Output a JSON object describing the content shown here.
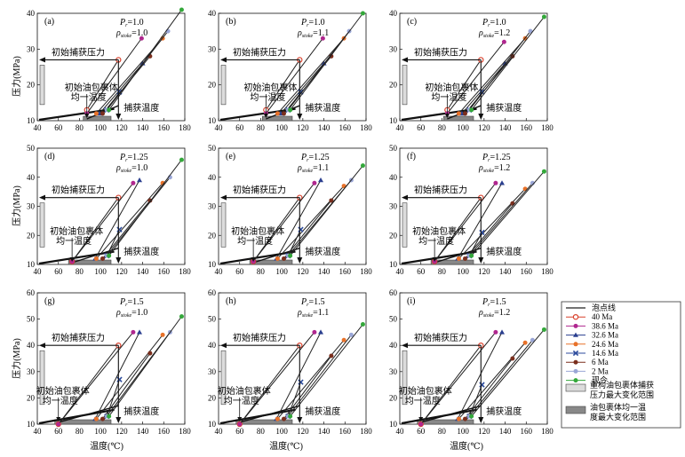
{
  "labels": {
    "ylabel": "压力(MPa)",
    "xlabel": "温度(℃)",
    "initial_pressure": "初始捕获压力",
    "init_homog_line1": "初始油包裹体",
    "init_homog_line2": "均一温度",
    "capture_temp": "捕获温度",
    "pr_prefix": "P",
    "pr_sub": "r",
    "rho_prefix": "ρ",
    "rho_sub": "stoke"
  },
  "legend": {
    "items": [
      {
        "label": "泡点线",
        "color": "#222222",
        "kind": "line"
      },
      {
        "label": "40 Ma",
        "color": "#d9402b",
        "kind": "circle-open"
      },
      {
        "label": "38.6 Ma",
        "color": "#b0278f",
        "kind": "circle"
      },
      {
        "label": "32.6 Ma",
        "color": "#2a3f8f",
        "kind": "triangle"
      },
      {
        "label": "24.6 Ma",
        "color": "#e8722a",
        "kind": "circle"
      },
      {
        "label": "14.6 Ma",
        "color": "#2c4b9c",
        "kind": "cross"
      },
      {
        "label": "6 Ma",
        "color": "#7a2e1d",
        "kind": "circle"
      },
      {
        "label": "2 Ma",
        "color": "#9aa6d6",
        "kind": "circle"
      },
      {
        "label": "现今",
        "color": "#33a83a",
        "kind": "circle"
      }
    ],
    "box1_line1": "重构油包裹体捕获",
    "box1_line2": "压力最大变化范围",
    "box2_line1": "油包裹体均一温",
    "box2_line2": "度最大变化范围"
  },
  "chart_data": [
    {
      "type": "line",
      "letter": "(a)",
      "pr": "=1.0",
      "rho": "=1.0",
      "xlim": [
        40,
        180
      ],
      "ylim": [
        10,
        40
      ],
      "xticks": [
        40,
        60,
        80,
        100,
        120,
        140,
        160,
        180
      ],
      "yticks": [
        10,
        20,
        30,
        40
      ],
      "initial_trapping_pressure": 27,
      "trapping_temperature": 117,
      "initial_homog_temperature": 87,
      "series": [
        {
          "label": "40 Ma",
          "x": [
            87,
            117
          ],
          "y": [
            13,
            27
          ]
        },
        {
          "label": "38.6 Ma",
          "x": [
            87,
            139
          ],
          "y": [
            12,
            33
          ]
        },
        {
          "label": "32.6 Ma",
          "x": [
            99,
            140
          ],
          "y": [
            12,
            26
          ]
        },
        {
          "label": "24.6 Ma",
          "x": [
            96,
            159
          ],
          "y": [
            12,
            33
          ]
        },
        {
          "label": "14.6 Ma",
          "x": [
            106,
            118
          ],
          "y": [
            13,
            18
          ]
        },
        {
          "label": "6 Ma",
          "x": [
            102,
            147
          ],
          "y": [
            12,
            28
          ]
        },
        {
          "label": "2 Ma",
          "x": [
            106,
            164
          ],
          "y": [
            13,
            35
          ]
        },
        {
          "label": "现今",
          "x": [
            108,
            177
          ],
          "y": [
            13,
            41
          ]
        }
      ]
    },
    {
      "type": "line",
      "letter": "(b)",
      "pr": "=1.0",
      "rho": "=1.1",
      "xlim": [
        40,
        180
      ],
      "ylim": [
        10,
        40
      ],
      "xticks": [
        40,
        60,
        80,
        100,
        120,
        140,
        160,
        180
      ],
      "yticks": [
        10,
        20,
        30,
        40
      ],
      "initial_trapping_pressure": 27,
      "trapping_temperature": 117,
      "initial_homog_temperature": 85,
      "series": [
        {
          "label": "40 Ma",
          "x": [
            85,
            117
          ],
          "y": [
            13,
            27
          ]
        },
        {
          "label": "38.6 Ma",
          "x": [
            85,
            139
          ],
          "y": [
            12,
            33
          ]
        },
        {
          "label": "32.6 Ma",
          "x": [
            99,
            140
          ],
          "y": [
            12,
            26
          ]
        },
        {
          "label": "24.6 Ma",
          "x": [
            96,
            159
          ],
          "y": [
            12,
            33
          ]
        },
        {
          "label": "14.6 Ma",
          "x": [
            106,
            118
          ],
          "y": [
            13,
            18
          ]
        },
        {
          "label": "6 Ma",
          "x": [
            102,
            147
          ],
          "y": [
            12,
            28
          ]
        },
        {
          "label": "2 Ma",
          "x": [
            106,
            164
          ],
          "y": [
            13,
            35
          ]
        },
        {
          "label": "现今",
          "x": [
            108,
            177
          ],
          "y": [
            13,
            40
          ]
        }
      ]
    },
    {
      "type": "line",
      "letter": "(c)",
      "pr": "=1.0",
      "rho": "=1.2",
      "xlim": [
        40,
        180
      ],
      "ylim": [
        10,
        40
      ],
      "xticks": [
        40,
        60,
        80,
        100,
        120,
        140,
        160,
        180
      ],
      "yticks": [
        10,
        20,
        30,
        40
      ],
      "initial_trapping_pressure": 27,
      "trapping_temperature": 117,
      "initial_homog_temperature": 85,
      "series": [
        {
          "label": "40 Ma",
          "x": [
            85,
            117
          ],
          "y": [
            13,
            27
          ]
        },
        {
          "label": "38.6 Ma",
          "x": [
            85,
            139
          ],
          "y": [
            12,
            32
          ]
        },
        {
          "label": "32.6 Ma",
          "x": [
            99,
            140
          ],
          "y": [
            12,
            26
          ]
        },
        {
          "label": "24.6 Ma",
          "x": [
            96,
            159
          ],
          "y": [
            12,
            33
          ]
        },
        {
          "label": "14.6 Ma",
          "x": [
            106,
            118
          ],
          "y": [
            13,
            18
          ]
        },
        {
          "label": "6 Ma",
          "x": [
            102,
            147
          ],
          "y": [
            12,
            28
          ]
        },
        {
          "label": "2 Ma",
          "x": [
            106,
            164
          ],
          "y": [
            13,
            35
          ]
        },
        {
          "label": "现今",
          "x": [
            108,
            177
          ],
          "y": [
            13,
            39
          ]
        }
      ]
    },
    {
      "type": "line",
      "letter": "(d)",
      "pr": "=1.25",
      "rho": "=1.0",
      "xlim": [
        40,
        180
      ],
      "ylim": [
        10,
        50
      ],
      "xticks": [
        40,
        60,
        80,
        100,
        120,
        140,
        160,
        180
      ],
      "yticks": [
        10,
        20,
        30,
        40,
        50
      ],
      "initial_trapping_pressure": 33,
      "trapping_temperature": 117,
      "initial_homog_temperature": 73,
      "series": [
        {
          "label": "40 Ma",
          "x": [
            73,
            117
          ],
          "y": [
            11,
            33
          ]
        },
        {
          "label": "38.6 Ma",
          "x": [
            73,
            131
          ],
          "y": [
            11,
            38
          ]
        },
        {
          "label": "32.6 Ma",
          "x": [
            95,
            137
          ],
          "y": [
            12,
            39
          ]
        },
        {
          "label": "24.6 Ma",
          "x": [
            96,
            159
          ],
          "y": [
            12,
            38
          ]
        },
        {
          "label": "14.6 Ma",
          "x": [
            106,
            118
          ],
          "y": [
            13,
            22
          ]
        },
        {
          "label": "6 Ma",
          "x": [
            102,
            147
          ],
          "y": [
            12,
            32
          ]
        },
        {
          "label": "2 Ma",
          "x": [
            106,
            166
          ],
          "y": [
            13,
            40
          ]
        },
        {
          "label": "现今",
          "x": [
            108,
            177
          ],
          "y": [
            13,
            46
          ]
        }
      ]
    },
    {
      "type": "line",
      "letter": "(e)",
      "pr": "=1.25",
      "rho": "=1.1",
      "xlim": [
        40,
        180
      ],
      "ylim": [
        10,
        50
      ],
      "xticks": [
        40,
        60,
        80,
        100,
        120,
        140,
        160,
        180
      ],
      "yticks": [
        10,
        20,
        30,
        40,
        50
      ],
      "initial_trapping_pressure": 33,
      "trapping_temperature": 117,
      "initial_homog_temperature": 73,
      "series": [
        {
          "label": "40 Ma",
          "x": [
            73,
            117
          ],
          "y": [
            11,
            33
          ]
        },
        {
          "label": "38.6 Ma",
          "x": [
            73,
            131
          ],
          "y": [
            11,
            38
          ]
        },
        {
          "label": "32.6 Ma",
          "x": [
            95,
            137
          ],
          "y": [
            12,
            39
          ]
        },
        {
          "label": "24.6 Ma",
          "x": [
            96,
            159
          ],
          "y": [
            12,
            37
          ]
        },
        {
          "label": "14.6 Ma",
          "x": [
            106,
            118
          ],
          "y": [
            13,
            22
          ]
        },
        {
          "label": "6 Ma",
          "x": [
            102,
            147
          ],
          "y": [
            12,
            32
          ]
        },
        {
          "label": "2 Ma",
          "x": [
            106,
            166
          ],
          "y": [
            13,
            39
          ]
        },
        {
          "label": "现今",
          "x": [
            108,
            177
          ],
          "y": [
            13,
            44
          ]
        }
      ]
    },
    {
      "type": "line",
      "letter": "(f)",
      "pr": "=1.25",
      "rho": "=1.2",
      "xlim": [
        40,
        180
      ],
      "ylim": [
        10,
        50
      ],
      "xticks": [
        40,
        60,
        80,
        100,
        120,
        140,
        160,
        180
      ],
      "yticks": [
        10,
        20,
        30,
        40,
        50
      ],
      "initial_trapping_pressure": 33,
      "trapping_temperature": 117,
      "initial_homog_temperature": 73,
      "series": [
        {
          "label": "40 Ma",
          "x": [
            73,
            117
          ],
          "y": [
            11,
            33
          ]
        },
        {
          "label": "38.6 Ma",
          "x": [
            73,
            131
          ],
          "y": [
            11,
            38
          ]
        },
        {
          "label": "32.6 Ma",
          "x": [
            95,
            137
          ],
          "y": [
            12,
            38
          ]
        },
        {
          "label": "24.6 Ma",
          "x": [
            96,
            159
          ],
          "y": [
            12,
            36
          ]
        },
        {
          "label": "14.6 Ma",
          "x": [
            106,
            118
          ],
          "y": [
            13,
            21
          ]
        },
        {
          "label": "6 Ma",
          "x": [
            102,
            147
          ],
          "y": [
            12,
            31
          ]
        },
        {
          "label": "2 Ma",
          "x": [
            106,
            166
          ],
          "y": [
            13,
            38
          ]
        },
        {
          "label": "现今",
          "x": [
            108,
            177
          ],
          "y": [
            13,
            42
          ]
        }
      ]
    },
    {
      "type": "line",
      "letter": "(g)",
      "pr": "=1.5",
      "rho": "=1.0",
      "xlim": [
        40,
        180
      ],
      "ylim": [
        10,
        60
      ],
      "xticks": [
        40,
        60,
        80,
        100,
        120,
        140,
        160,
        180
      ],
      "yticks": [
        10,
        20,
        30,
        40,
        50,
        60
      ],
      "initial_trapping_pressure": 40,
      "trapping_temperature": 117,
      "initial_homog_temperature": 60,
      "series": [
        {
          "label": "40 Ma",
          "x": [
            60,
            117
          ],
          "y": [
            10,
            40
          ]
        },
        {
          "label": "38.6 Ma",
          "x": [
            60,
            131
          ],
          "y": [
            10,
            45
          ]
        },
        {
          "label": "32.6 Ma",
          "x": [
            95,
            137
          ],
          "y": [
            12,
            45
          ]
        },
        {
          "label": "24.6 Ma",
          "x": [
            96,
            159
          ],
          "y": [
            12,
            44
          ]
        },
        {
          "label": "14.6 Ma",
          "x": [
            106,
            118
          ],
          "y": [
            13,
            27
          ]
        },
        {
          "label": "6 Ma",
          "x": [
            102,
            147
          ],
          "y": [
            12,
            37
          ]
        },
        {
          "label": "2 Ma",
          "x": [
            106,
            166
          ],
          "y": [
            13,
            45
          ]
        },
        {
          "label": "现今",
          "x": [
            108,
            177
          ],
          "y": [
            13,
            51
          ]
        }
      ]
    },
    {
      "type": "line",
      "letter": "(h)",
      "pr": "=1.5",
      "rho": "=1.1",
      "xlim": [
        40,
        180
      ],
      "ylim": [
        10,
        60
      ],
      "xticks": [
        40,
        60,
        80,
        100,
        120,
        140,
        160,
        180
      ],
      "yticks": [
        10,
        20,
        30,
        40,
        50,
        60
      ],
      "initial_trapping_pressure": 40,
      "trapping_temperature": 117,
      "initial_homog_temperature": 60,
      "series": [
        {
          "label": "40 Ma",
          "x": [
            60,
            117
          ],
          "y": [
            10,
            40
          ]
        },
        {
          "label": "38.6 Ma",
          "x": [
            60,
            131
          ],
          "y": [
            10,
            45
          ]
        },
        {
          "label": "32.6 Ma",
          "x": [
            95,
            137
          ],
          "y": [
            12,
            45
          ]
        },
        {
          "label": "24.6 Ma",
          "x": [
            96,
            159
          ],
          "y": [
            12,
            42
          ]
        },
        {
          "label": "14.6 Ma",
          "x": [
            106,
            118
          ],
          "y": [
            13,
            26
          ]
        },
        {
          "label": "6 Ma",
          "x": [
            102,
            147
          ],
          "y": [
            12,
            36
          ]
        },
        {
          "label": "2 Ma",
          "x": [
            106,
            166
          ],
          "y": [
            13,
            44
          ]
        },
        {
          "label": "现今",
          "x": [
            108,
            177
          ],
          "y": [
            13,
            48
          ]
        }
      ]
    },
    {
      "type": "line",
      "letter": "(i)",
      "pr": "=1.5",
      "rho": "=1.2",
      "xlim": [
        40,
        180
      ],
      "ylim": [
        10,
        60
      ],
      "xticks": [
        40,
        60,
        80,
        100,
        120,
        140,
        160,
        180
      ],
      "yticks": [
        10,
        20,
        30,
        40,
        50,
        60
      ],
      "initial_trapping_pressure": 40,
      "trapping_temperature": 117,
      "initial_homog_temperature": 60,
      "series": [
        {
          "label": "40 Ma",
          "x": [
            60,
            117
          ],
          "y": [
            10,
            40
          ]
        },
        {
          "label": "38.6 Ma",
          "x": [
            60,
            131
          ],
          "y": [
            10,
            45
          ]
        },
        {
          "label": "32.6 Ma",
          "x": [
            95,
            137
          ],
          "y": [
            12,
            45
          ]
        },
        {
          "label": "24.6 Ma",
          "x": [
            96,
            159
          ],
          "y": [
            12,
            41
          ]
        },
        {
          "label": "14.6 Ma",
          "x": [
            106,
            118
          ],
          "y": [
            13,
            25
          ]
        },
        {
          "label": "6 Ma",
          "x": [
            102,
            147
          ],
          "y": [
            12,
            35
          ]
        },
        {
          "label": "2 Ma",
          "x": [
            106,
            166
          ],
          "y": [
            13,
            42
          ]
        },
        {
          "label": "现今",
          "x": [
            108,
            177
          ],
          "y": [
            13,
            46
          ]
        }
      ]
    }
  ]
}
